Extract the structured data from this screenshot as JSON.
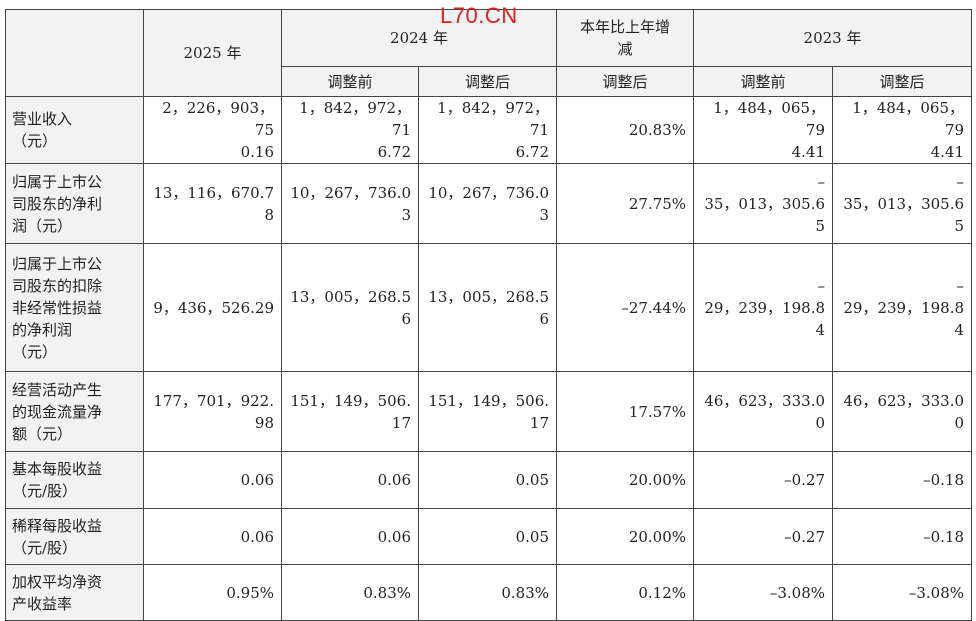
{
  "watermark": "L70.CN",
  "header": {
    "y2025": "2025 年",
    "y2024": "2024 年",
    "change": "本年比上年增\n减",
    "y2023": "2023 年",
    "before_a": "调整前",
    "after_a": "调整后",
    "after_change": "调整后",
    "before_b": "调整前",
    "after_b": "调整后"
  },
  "rows": [
    {
      "label": "营业收入\n（元）",
      "v2025": "2，226，903，75\n0.16",
      "v2024_before": "1，842，972，71\n6.72",
      "v2024_after": "1，842，972，71\n6.72",
      "change": "20.83%",
      "v2023_before": "1，484，065，79\n4.41",
      "v2023_after": "1，484，065，79\n4.41"
    },
    {
      "label": "归属于上市公\n司股东的净利\n润（元）",
      "v2025": "13，116，670.7\n8",
      "v2024_before": "10，267，736.0\n3",
      "v2024_after": "10，267，736.0\n3",
      "change": "27.75%",
      "v2023_before": "–\n35，013，305.6\n5",
      "v2023_after": "–\n35，013，305.6\n5"
    },
    {
      "label": "归属于上市公\n司股东的扣除\n非经常性损益\n的净利润\n（元）",
      "v2025": "9，436，526.29",
      "v2024_before": "13，005，268.5\n6",
      "v2024_after": "13，005，268.5\n6",
      "change": "–27.44%",
      "v2023_before": "–\n29，239，198.8\n4",
      "v2023_after": "–\n29，239，198.8\n4"
    },
    {
      "label": "经营活动产生\n的现金流量净\n额（元）",
      "v2025": "177，701，922.\n98",
      "v2024_before": "151，149，506.\n17",
      "v2024_after": "151，149，506.\n17",
      "change": "17.57%",
      "v2023_before": "46，623，333.0\n0",
      "v2023_after": "46，623，333.0\n0"
    },
    {
      "label": "基本每股收益\n（元/股）",
      "v2025": "0.06",
      "v2024_before": "0.06",
      "v2024_after": "0.05",
      "change": "20.00%",
      "v2023_before": "–0.27",
      "v2023_after": "–0.18"
    },
    {
      "label": "稀释每股收益\n（元/股）",
      "v2025": "0.06",
      "v2024_before": "0.06",
      "v2024_after": "0.05",
      "change": "20.00%",
      "v2023_before": "–0.27",
      "v2023_after": "–0.18"
    },
    {
      "label": "加权平均净资\n产收益率",
      "v2025": "0.95%",
      "v2024_before": "0.83%",
      "v2024_after": "0.83%",
      "change": "0.12%",
      "v2023_before": "–3.08%",
      "v2023_after": "–3.08%"
    }
  ]
}
